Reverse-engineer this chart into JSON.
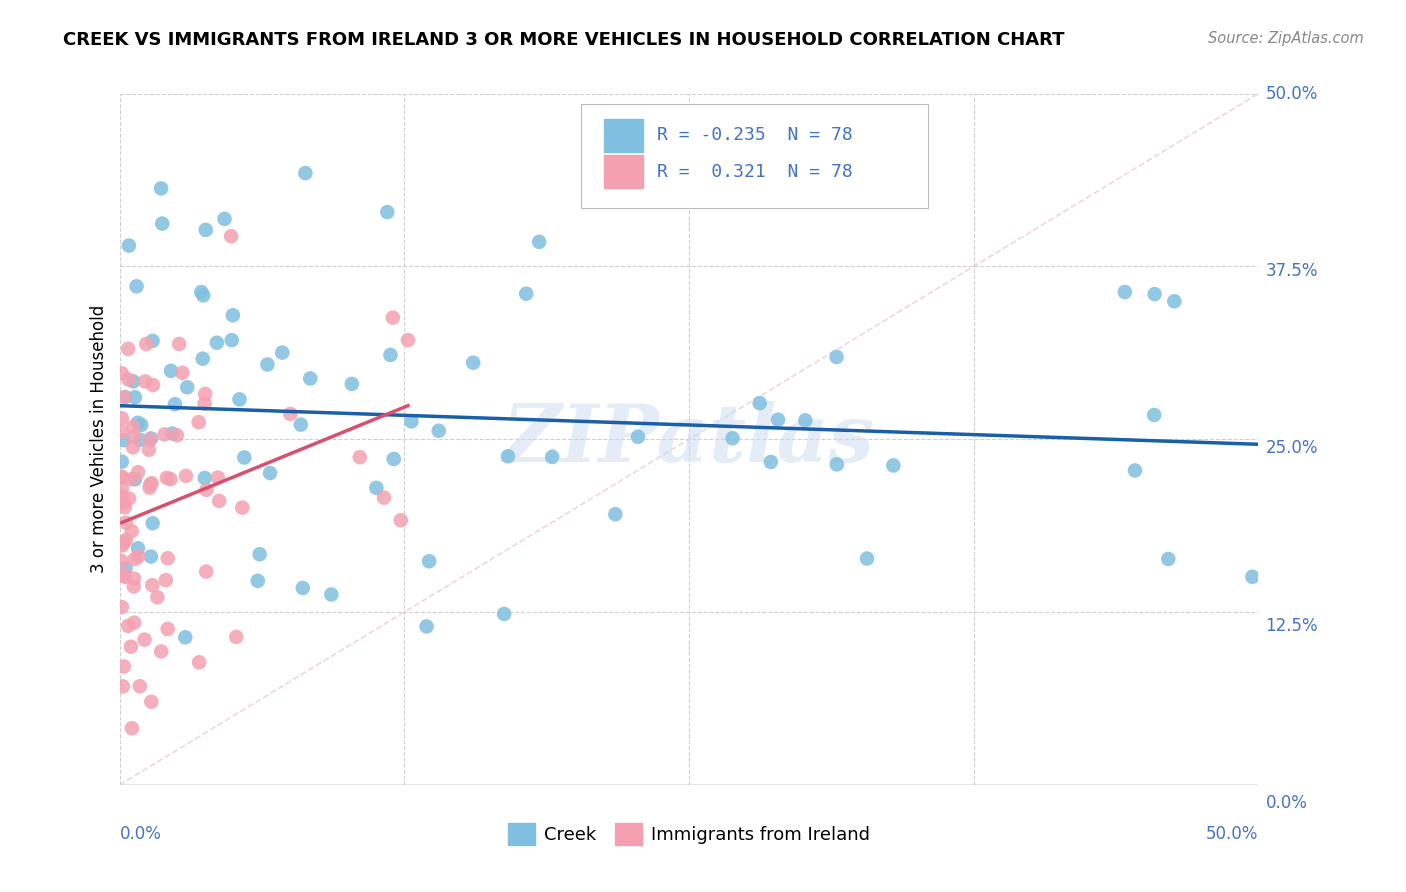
{
  "title": "CREEK VS IMMIGRANTS FROM IRELAND 3 OR MORE VEHICLES IN HOUSEHOLD CORRELATION CHART",
  "source": "Source: ZipAtlas.com",
  "ylabel": "3 or more Vehicles in Household",
  "creek_color": "#7fbfdf",
  "ireland_color": "#f4a0b0",
  "creek_line_color": "#1a5fa8",
  "ireland_line_color": "#d94f6e",
  "creek_R": -0.235,
  "ireland_R": 0.321,
  "N": 78,
  "xlim": [
    0.0,
    0.5
  ],
  "ylim": [
    0.0,
    0.5
  ],
  "watermark": "ZIPatlas",
  "legend_label_creek": "Creek",
  "legend_label_ireland": "Immigrants from Ireland",
  "tick_color": "#4472c4",
  "grid_color": "#d0d0d0"
}
